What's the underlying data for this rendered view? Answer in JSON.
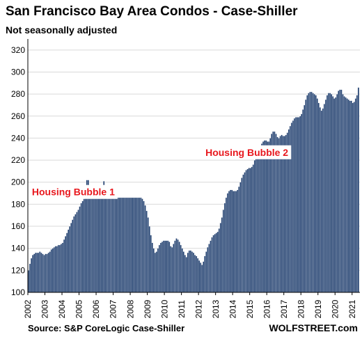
{
  "chart_data": {
    "type": "bar",
    "title": "San Francisco Bay Area Condos - Case-Shiller",
    "subtitle": "Not seasonally adjusted",
    "xlabel": "",
    "ylabel": "",
    "ylim": [
      100,
      330
    ],
    "yticks": [
      100,
      120,
      140,
      160,
      180,
      200,
      220,
      240,
      260,
      280,
      300,
      320
    ],
    "xticks": [
      "2002",
      "2003",
      "2004",
      "2005",
      "2006",
      "2007",
      "2008",
      "2009",
      "2010",
      "2011",
      "2012",
      "2013",
      "2014",
      "2015",
      "2016",
      "2017",
      "2018",
      "2019",
      "2020",
      "2021"
    ],
    "grid": "horizontal",
    "bar_color": "#1f3e6e",
    "annotation_color": "#e8181e",
    "start": "2002-01",
    "frequency": "monthly",
    "values": [
      120,
      126,
      131,
      134,
      135,
      136,
      136,
      136,
      137,
      136,
      135,
      134,
      135,
      135,
      136,
      137,
      139,
      140,
      141,
      142,
      142,
      143,
      143,
      144,
      145,
      148,
      151,
      154,
      157,
      160,
      163,
      166,
      169,
      171,
      173,
      175,
      178,
      181,
      183,
      185,
      186,
      186,
      186,
      186,
      186,
      186,
      186,
      186,
      186,
      186,
      186,
      186,
      186,
      186,
      186,
      186,
      186,
      186,
      186,
      186,
      186,
      186,
      186,
      186,
      186,
      186,
      186,
      186,
      186,
      186,
      186,
      186,
      186,
      186,
      186,
      186,
      186,
      186,
      186,
      186,
      185,
      183,
      179,
      174,
      168,
      160,
      152,
      145,
      140,
      136,
      137,
      140,
      143,
      145,
      146,
      147,
      147,
      147,
      147,
      146,
      142,
      141,
      144,
      147,
      149,
      148,
      146,
      143,
      140,
      137,
      134,
      132,
      136,
      138,
      138,
      137,
      136,
      134,
      133,
      131,
      129,
      127,
      125,
      128,
      133,
      137,
      141,
      144,
      147,
      150,
      152,
      153,
      154,
      155,
      158,
      163,
      168,
      175,
      181,
      186,
      190,
      192,
      193,
      193,
      192,
      192,
      192,
      193,
      196,
      200,
      204,
      207,
      209,
      211,
      212,
      213,
      213,
      214,
      216,
      220,
      224,
      227,
      230,
      232,
      235,
      237,
      238,
      238,
      237,
      237,
      240,
      244,
      246,
      246,
      244,
      241,
      240,
      242,
      243,
      242,
      242,
      243,
      245,
      248,
      251,
      254,
      256,
      258,
      259,
      259,
      259,
      260,
      262,
      266,
      270,
      275,
      279,
      281,
      282,
      282,
      281,
      280,
      279,
      276,
      272,
      268,
      265,
      267,
      271,
      275,
      279,
      281,
      281,
      280,
      278,
      276,
      277,
      280,
      283,
      284,
      284,
      280,
      278,
      277,
      276,
      275,
      274,
      274,
      272,
      273,
      276,
      279,
      286
    ],
    "annotations": [
      {
        "text": "Housing Bubble 1",
        "x": "2004-09",
        "y": 188
      },
      {
        "text": "Housing Bubble 2",
        "x": "2014-11",
        "y": 224
      }
    ],
    "spikes": [
      {
        "x": "2005-06",
        "y": 202
      },
      {
        "x": "2005-07",
        "y": 202
      },
      {
        "x": "2006-06",
        "y": 201
      }
    ]
  },
  "footer": {
    "source": "Source: S&P CoreLogic Case-Shiller",
    "brand": "WOLFSTREET.com"
  }
}
